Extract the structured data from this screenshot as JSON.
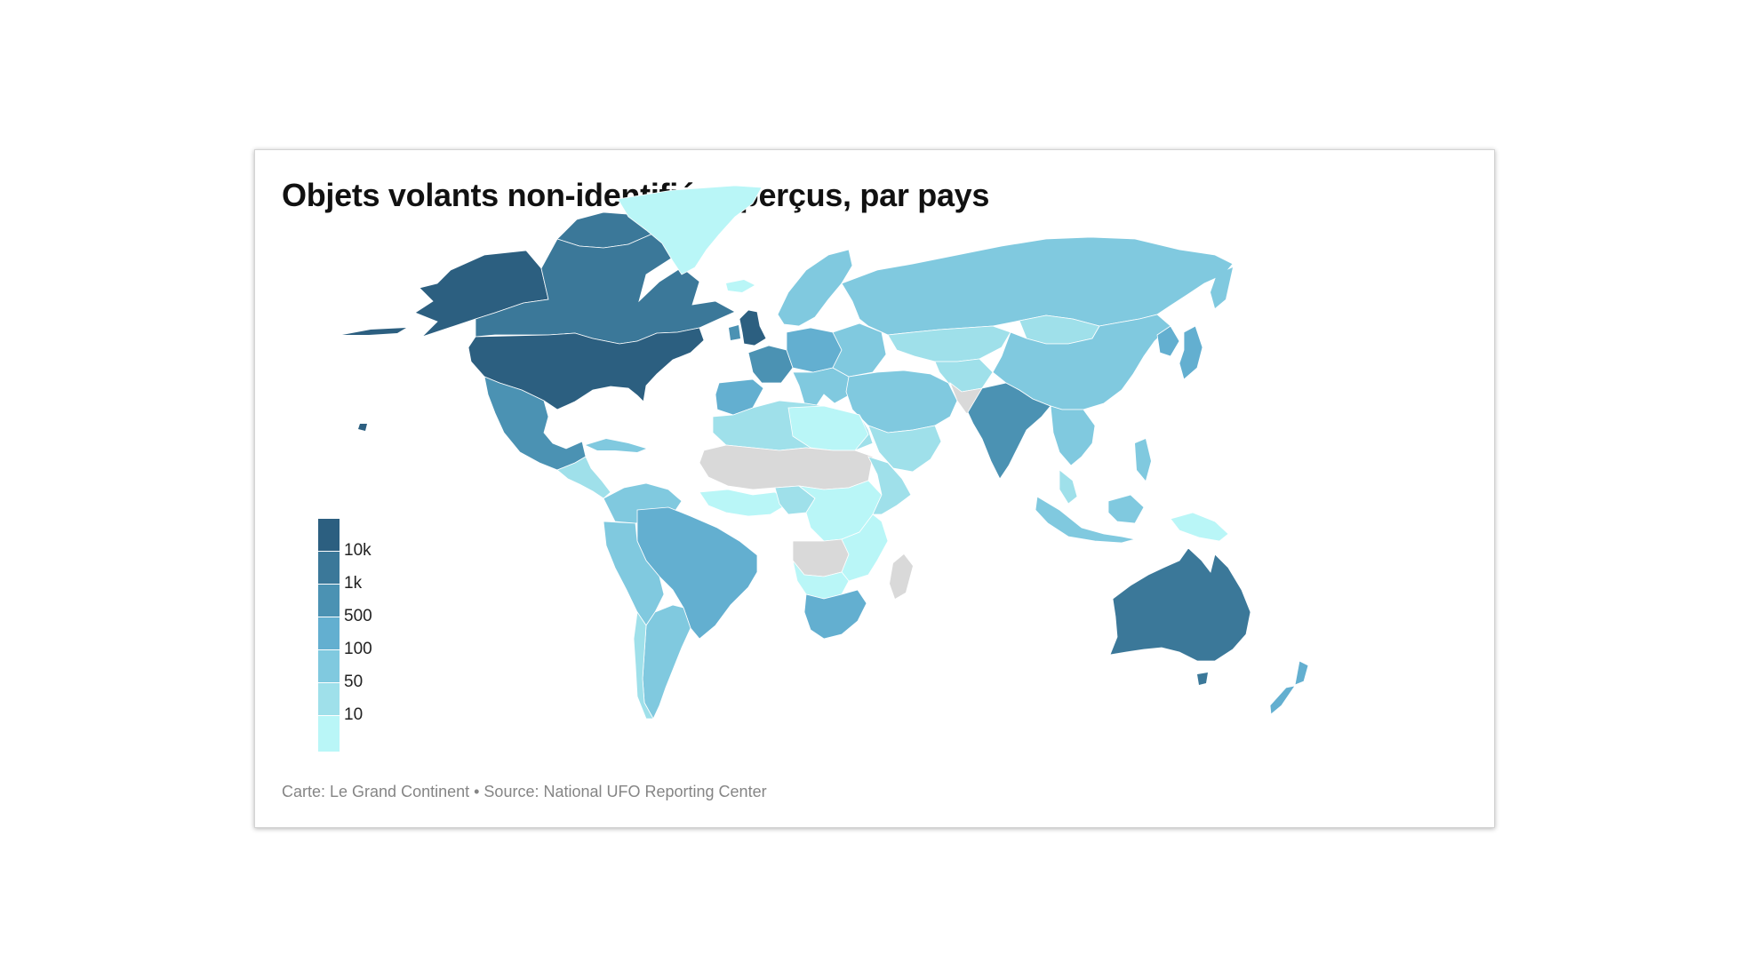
{
  "title": "Objets volants non-identifiés aperçus, par pays",
  "legend": {
    "ticks": [
      "10k",
      "1k",
      "500",
      "100",
      "50",
      "10"
    ],
    "colors": [
      "#2c5f80",
      "#3b7899",
      "#4b92b3",
      "#63afd0",
      "#80c9df",
      "#9fe0ea",
      "#b9f6f7"
    ],
    "no_data_color": "#d9d9d9"
  },
  "footer": "Carte: Le Grand Continent • Source: National UFO Reporting Center",
  "map_data": {
    "type": "choropleth",
    "scale_breaks": [
      10,
      50,
      100,
      500,
      1000,
      10000
    ],
    "countries": [
      {
        "name": "United States",
        "bin": 6
      },
      {
        "name": "Canada",
        "bin": 5
      },
      {
        "name": "United Kingdom",
        "bin": 5
      },
      {
        "name": "Australia",
        "bin": 5
      },
      {
        "name": "India",
        "bin": 4
      },
      {
        "name": "Mexico",
        "bin": 4
      },
      {
        "name": "Brazil",
        "bin": 3
      },
      {
        "name": "South Africa",
        "bin": 3
      },
      {
        "name": "New Zealand",
        "bin": 3
      },
      {
        "name": "Russia",
        "bin": 2
      },
      {
        "name": "China",
        "bin": 2
      },
      {
        "name": "Argentina",
        "bin": 2
      },
      {
        "name": "Greenland",
        "bin": 0
      }
    ]
  }
}
